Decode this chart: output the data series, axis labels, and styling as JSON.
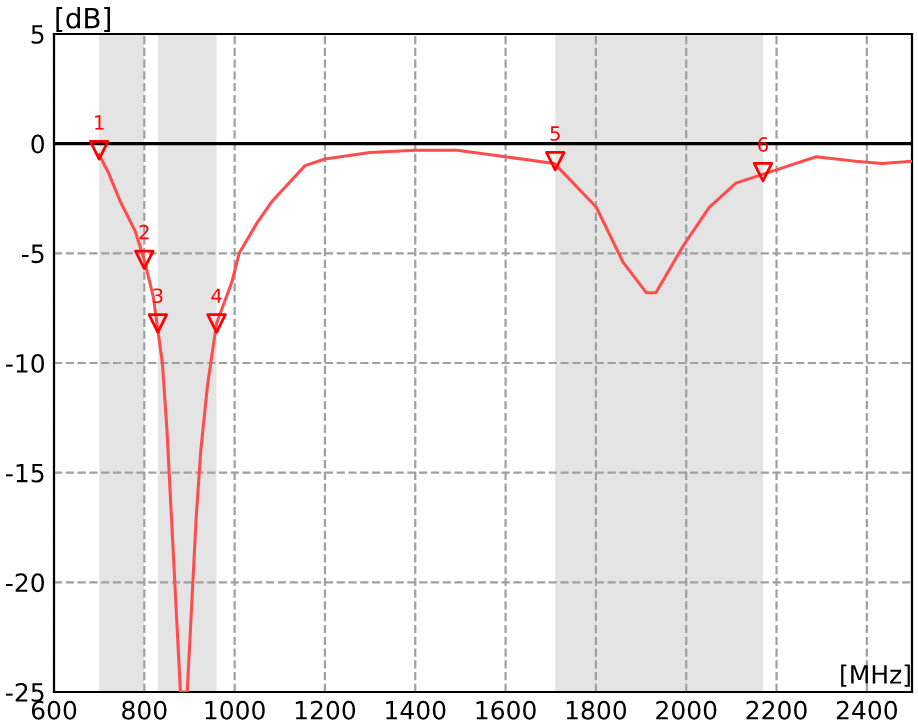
{
  "chart_data": {
    "type": "line",
    "xlabel": "[MHz]",
    "ylabel": "[dB]",
    "xlim": [
      600,
      2500
    ],
    "xticks": [
      600,
      800,
      1000,
      1200,
      1400,
      1600,
      1800,
      2000,
      2200,
      2400
    ],
    "ylim": [
      -25,
      5
    ],
    "yticks": [
      -25,
      -20,
      -15,
      -10,
      -5,
      0,
      5
    ],
    "grid": true,
    "line_style": "solid",
    "bands": [
      {
        "axis": "x",
        "from": 700,
        "to": 800,
        "color": "#e4e4e4"
      },
      {
        "axis": "x",
        "from": 830,
        "to": 960,
        "color": "#e4e4e4"
      },
      {
        "axis": "x",
        "from": 1710,
        "to": 2170,
        "color": "#e4e4e4"
      }
    ],
    "ref_lines": [
      {
        "axis": "y",
        "value": 0,
        "color": "#000000",
        "line_style": "solid"
      }
    ],
    "series": [
      {
        "color": "#ff4d4d",
        "marker": "none",
        "x": [
          700,
          720,
          746,
          780,
          800,
          820,
          840,
          850,
          860,
          870,
          880,
          895,
          905,
          915,
          925,
          940,
          960,
          994,
          1010,
          1050,
          1084,
          1156,
          1200,
          1300,
          1400,
          1492,
          1600,
          1708,
          1801,
          1860,
          1912,
          1933,
          1992,
          2051,
          2110,
          2169,
          2288,
          2375,
          2433,
          2500
        ],
        "values": [
          -0.5,
          -1.3,
          -2.6,
          -4.0,
          -5.3,
          -7.0,
          -10.0,
          -13.0,
          -17.0,
          -21.0,
          -25,
          -25,
          -21.0,
          -17.0,
          -14.0,
          -11.0,
          -8.2,
          -6.3,
          -5.0,
          -3.6,
          -2.6,
          -1.0,
          -0.7,
          -0.4,
          -0.3,
          -0.3,
          -0.6,
          -0.9,
          -2.9,
          -5.4,
          -6.8,
          -6.8,
          -4.7,
          -2.9,
          -1.8,
          -1.4,
          -0.6,
          -0.8,
          -0.9,
          -0.8
        ]
      },
      {
        "type": "scatter",
        "color": "#ff0000",
        "marker": "triangle",
        "x": [
          700,
          800,
          830,
          960,
          1710,
          2170
        ],
        "values": [
          -0.3,
          -5.3,
          -8.2,
          -8.2,
          -0.8,
          -1.3
        ]
      }
    ],
    "annotations": [
      {
        "text": "1",
        "x": 700,
        "y": -0.3
      },
      {
        "text": "2",
        "x": 800,
        "y": -5.3
      },
      {
        "text": "3",
        "x": 830,
        "y": -8.2
      },
      {
        "text": "4",
        "x": 960,
        "y": -8.2
      },
      {
        "text": "5",
        "x": 1710,
        "y": -0.8
      },
      {
        "text": "6",
        "x": 2170,
        "y": -1.3
      }
    ]
  }
}
